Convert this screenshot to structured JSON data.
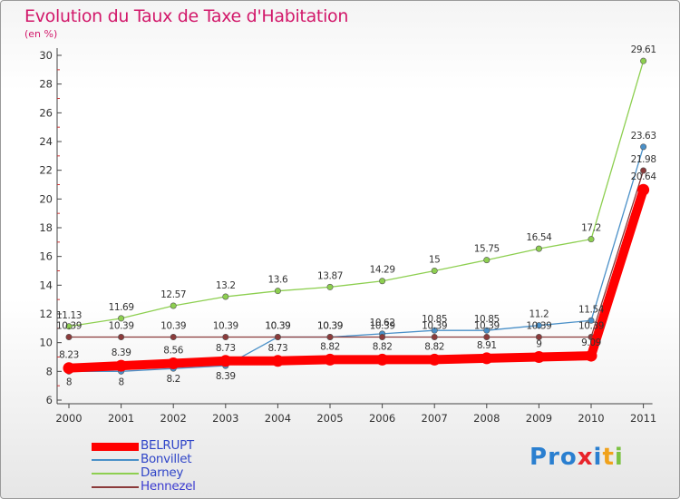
{
  "title": "Evolution du Taux de Taxe d'Habitation",
  "subtitle": "(en %)",
  "logo": {
    "letters": [
      "P",
      "r",
      "o",
      "x",
      "i",
      "t",
      "i"
    ],
    "colors": [
      "#2a7fd0",
      "#2a7fd0",
      "#2a7fd0",
      "#e8242b",
      "#2a7fd0",
      "#f0a21c",
      "#7cc242"
    ]
  },
  "chart_data": {
    "type": "line",
    "x": [
      "2000",
      "2001",
      "2002",
      "2003",
      "2004",
      "2005",
      "2006",
      "2007",
      "2008",
      "2009",
      "2010",
      "2011"
    ],
    "ylim": [
      6,
      30
    ],
    "yticks": [
      6,
      8,
      10,
      12,
      14,
      16,
      18,
      20,
      22,
      24,
      26,
      28,
      30
    ],
    "grid": false,
    "legend_position": "bottom-left",
    "series": [
      {
        "name": "BELRUPT",
        "color": "#ff0000",
        "values": [
          8.23,
          8.39,
          8.56,
          8.73,
          8.73,
          8.82,
          8.82,
          8.82,
          8.91,
          9,
          9.09,
          20.64
        ],
        "labels": [
          "8.23",
          "8.39",
          "8.56",
          "8.73",
          "8.73",
          "8.82",
          "8.82",
          "8.82",
          "8.91",
          "9",
          "9.09",
          "20.64"
        ]
      },
      {
        "name": "Bonvillet",
        "color": "#4a90c8",
        "values": [
          8,
          8,
          8.2,
          8.39,
          10.39,
          10.39,
          10.62,
          10.85,
          10.85,
          11.2,
          11.54,
          23.63
        ],
        "labels": [
          "8",
          "8",
          "8.2",
          "8.39",
          "10.39",
          "10.39",
          "10.62",
          "10.85",
          "10.85",
          "11.2",
          "11.54",
          "23.63"
        ]
      },
      {
        "name": "Darney",
        "color": "#8dcf50",
        "values": [
          11.13,
          11.69,
          12.57,
          13.2,
          13.6,
          13.87,
          14.29,
          15,
          15.75,
          16.54,
          17.2,
          29.61
        ],
        "labels": [
          "11.13",
          "11.69",
          "12.57",
          "13.2",
          "13.6",
          "13.87",
          "14.29",
          "15",
          "15.75",
          "16.54",
          "17.2",
          "29.61"
        ]
      },
      {
        "name": "Hennezel",
        "color": "#8b3b3b",
        "values": [
          10.39,
          10.39,
          10.39,
          10.39,
          10.39,
          10.39,
          10.39,
          10.39,
          10.39,
          10.39,
          10.39,
          21.98
        ],
        "labels": [
          "10.39",
          "10.39",
          "10.39",
          "10.39",
          "10.39",
          "10.39",
          "10.39",
          "10.39",
          "10.39",
          "10.39",
          "10.39",
          "21.98"
        ]
      }
    ]
  }
}
